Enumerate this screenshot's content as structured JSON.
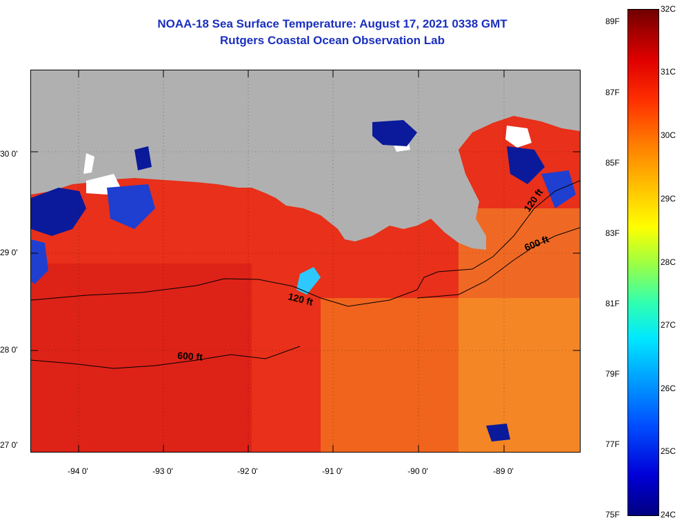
{
  "title": {
    "line1": "NOAA-18 Sea Surface Temperature:  August 17, 2021 0338 GMT",
    "line2": "Rutgers Coastal Ocean Observation Lab"
  },
  "map": {
    "lat_labels": [
      "30 0'",
      "29 0'",
      "28 0'",
      "27 0'"
    ],
    "lon_labels": [
      "-94 0'",
      "-93 0'",
      "-92 0'",
      "-91 0'",
      "-90 0'",
      "-89 0'"
    ],
    "contour_labels": [
      "120 ft",
      "600 ft",
      "600 ft",
      "120 ft"
    ],
    "colors": {
      "land": "#b0b0b0",
      "cloud": "#ffffff",
      "warm_water": "#e8261a",
      "cool_patch": "#0a1a9a",
      "contour": "#000000",
      "title_text": "#1a2fbf"
    }
  },
  "colorbar": {
    "fahrenheit": [
      "89F",
      "87F",
      "85F",
      "83F",
      "81F",
      "79F",
      "77F",
      "75F"
    ],
    "celsius": [
      "32C",
      "31C",
      "30C",
      "29C",
      "28C",
      "27C",
      "26C",
      "25C",
      "24C"
    ],
    "range_c": [
      24,
      32
    ],
    "range_f": [
      75,
      89.6
    ]
  }
}
